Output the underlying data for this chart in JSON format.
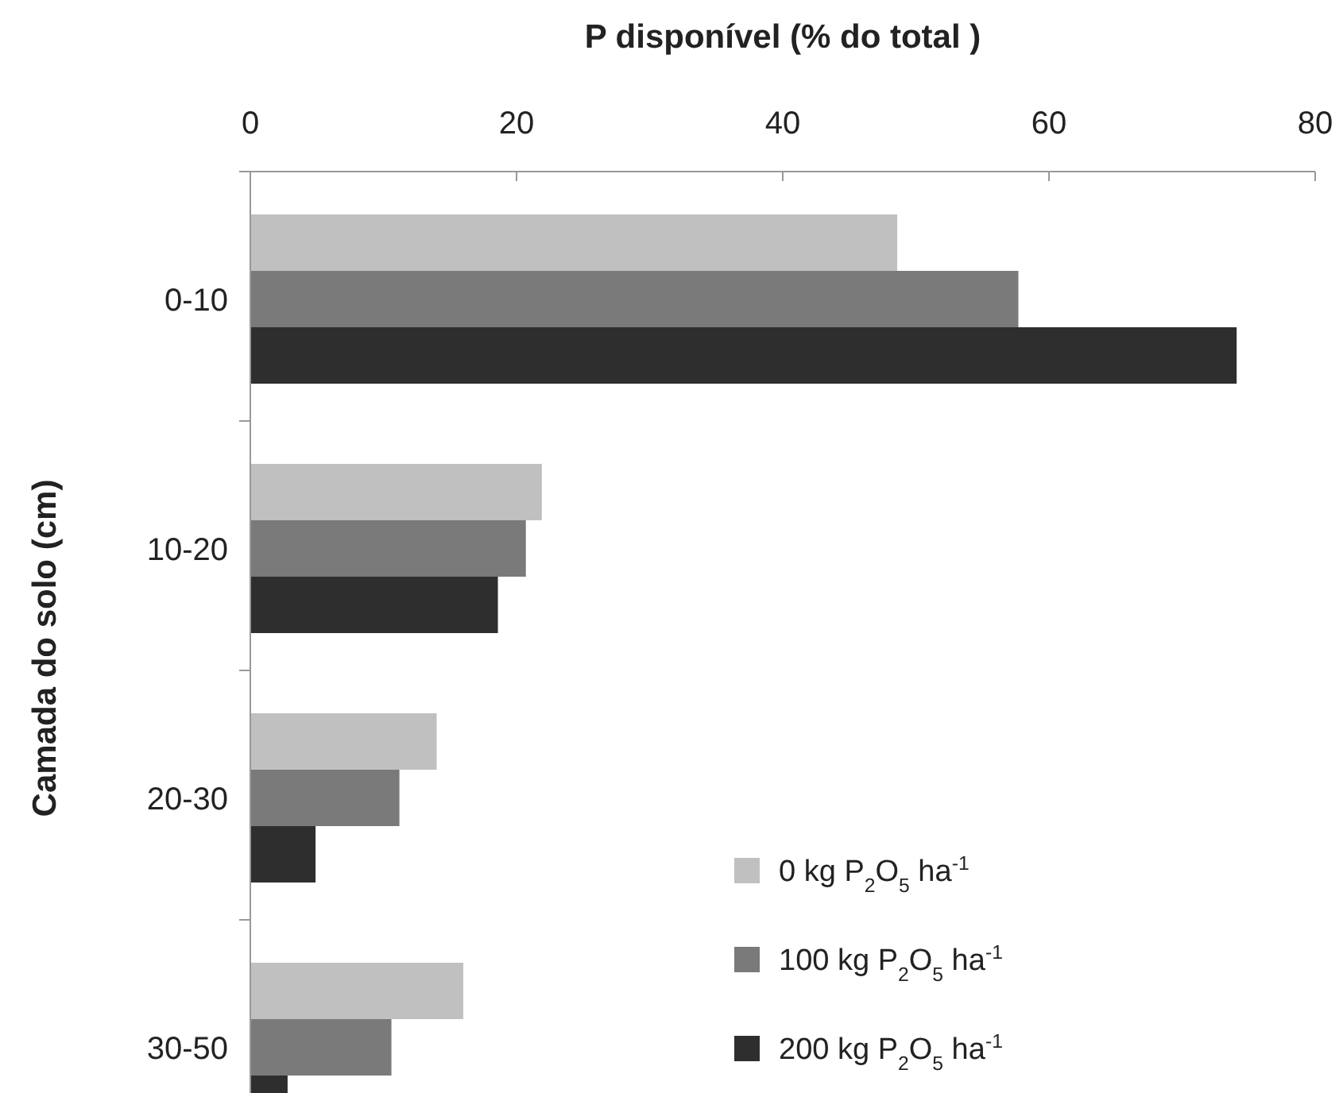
{
  "chart_data": {
    "type": "bar",
    "orientation": "horizontal",
    "xlabel": "P disponível (% do total )",
    "ylabel": "Camada do solo (cm)",
    "categories": [
      "0-10",
      "10-20",
      "20-30",
      "30-50"
    ],
    "series": [
      {
        "name": "0 kg P$_{2}$O$_{5}$ ha$^{-1}$",
        "color": "#c0c0c0",
        "values": [
          48.6,
          21.9,
          14.0,
          16.0
        ]
      },
      {
        "name": "100 kg P$_{2}$O$_{5}$ ha$^{-1}$",
        "color": "#7a7a7a",
        "values": [
          57.7,
          20.7,
          11.2,
          10.6
        ]
      },
      {
        "name": "200 kg P$_{2}$O$_{5}$ ha$^{-1}$",
        "color": "#2e2e2e",
        "values": [
          74.1,
          18.6,
          4.9,
          2.8
        ]
      }
    ],
    "xlim": [
      0,
      80
    ],
    "xticks": [
      0,
      20,
      40,
      60,
      80
    ],
    "grid": false,
    "legend": "bottom right"
  }
}
